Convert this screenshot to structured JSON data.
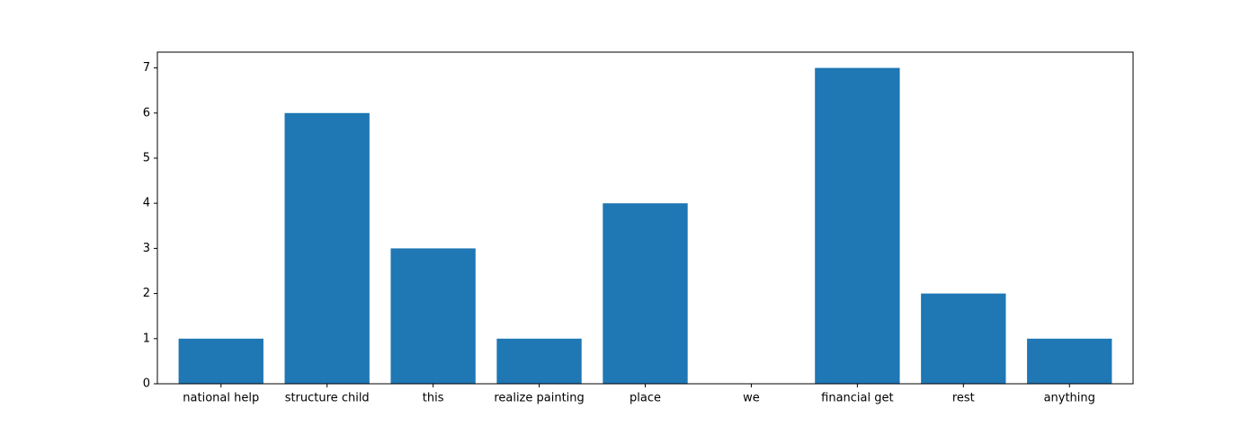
{
  "chart_data": {
    "type": "bar",
    "categories": [
      "national help",
      "structure child",
      "this",
      "realize painting",
      "place",
      "we",
      "financial get",
      "rest",
      "anything"
    ],
    "values": [
      1,
      6,
      3,
      1,
      4,
      0,
      7,
      2,
      1
    ],
    "title": "",
    "xlabel": "",
    "ylabel": "",
    "ylim": [
      0,
      7.35
    ],
    "yticks": [
      0,
      1,
      2,
      3,
      4,
      5,
      6,
      7
    ],
    "grid": false,
    "bar_color": "#1f77b4"
  }
}
